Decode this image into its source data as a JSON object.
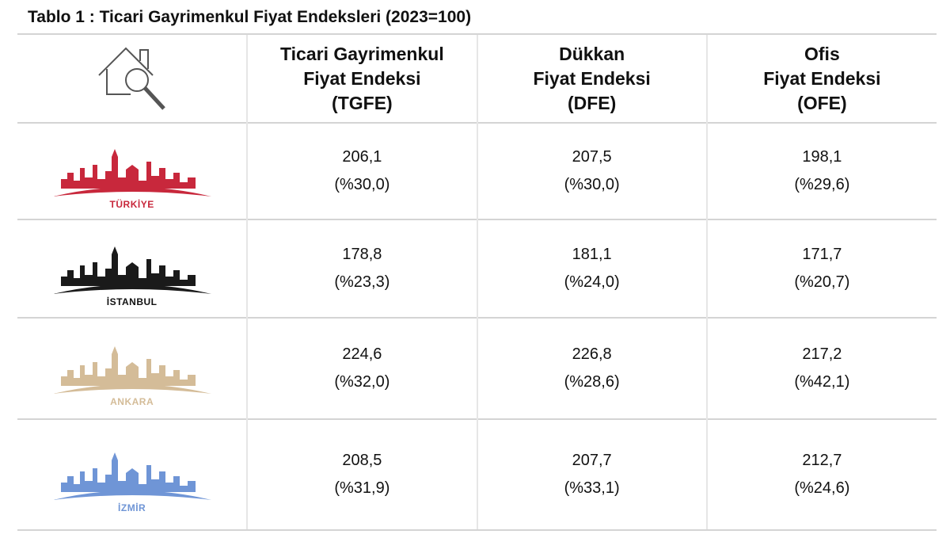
{
  "header": {
    "title": "Tablo 1 : Ticari Gayrimenkul Fiyat Endeksleri (2023=100)"
  },
  "table": {
    "columns": [
      [
        "Ticari Gayrimenkul",
        "Fiyat Endeksi",
        "(TGFE)"
      ],
      [
        "Dükkan",
        "Fiyat Endeksi",
        "(DFE)"
      ],
      [
        "Ofis",
        "Fiyat Endeksi",
        "(OFE)"
      ]
    ],
    "rows": [
      {
        "label": "TÜRKİYE",
        "cells": [
          [
            "206,1",
            "(%30,0)"
          ],
          [
            "207,5",
            "(%30,0)"
          ],
          [
            "198,1",
            "(%29,6)"
          ]
        ]
      },
      {
        "label": "İSTANBUL",
        "cells": [
          [
            "178,8",
            "(%23,3)"
          ],
          [
            "181,1",
            "(%24,0)"
          ],
          [
            "171,7",
            "(%20,7)"
          ]
        ]
      },
      {
        "label": "ANKARA",
        "cells": [
          [
            "224,6",
            "(%32,0)"
          ],
          [
            "226,8",
            "(%28,6)"
          ],
          [
            "217,2",
            "(%42,1)"
          ]
        ]
      },
      {
        "label": "İZMİR",
        "cells": [
          [
            "208,5",
            "(%31,9)"
          ],
          [
            "207,7",
            "(%33,1)"
          ],
          [
            "212,7",
            "(%24,6)"
          ]
        ]
      }
    ]
  }
}
